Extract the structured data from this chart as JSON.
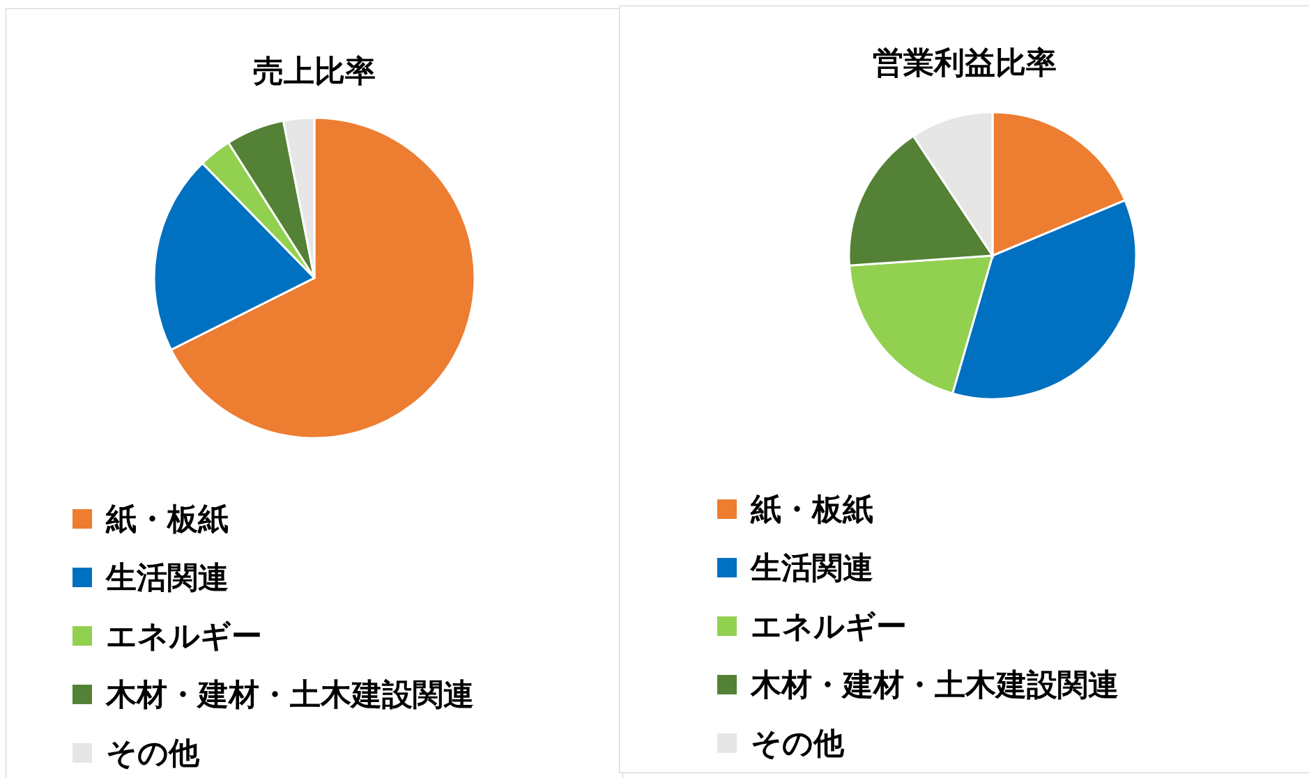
{
  "chart_data": [
    {
      "type": "pie",
      "title": "売上比率",
      "categories": [
        "紙・板紙",
        "生活関連",
        "エネルギー",
        "木材・建材・土木建設関連",
        "その他"
      ],
      "values": [
        67.6,
        20.1,
        3.3,
        5.9,
        3.1
      ],
      "colors": [
        "#ed7d31",
        "#0070c0",
        "#92d050",
        "#538135",
        "#e7e6e6"
      ],
      "legend": "bottom"
    },
    {
      "type": "pie",
      "title": "営業利益比率",
      "categories": [
        "紙・板紙",
        "生活関連",
        "エネルギー",
        "木材・建材・土木建設関連",
        "その他"
      ],
      "values": [
        18.7,
        35.8,
        19.4,
        16.8,
        9.3
      ],
      "colors": [
        "#ed7d31",
        "#0070c0",
        "#92d050",
        "#538135",
        "#e7e6e6"
      ],
      "legend": "bottom"
    }
  ]
}
